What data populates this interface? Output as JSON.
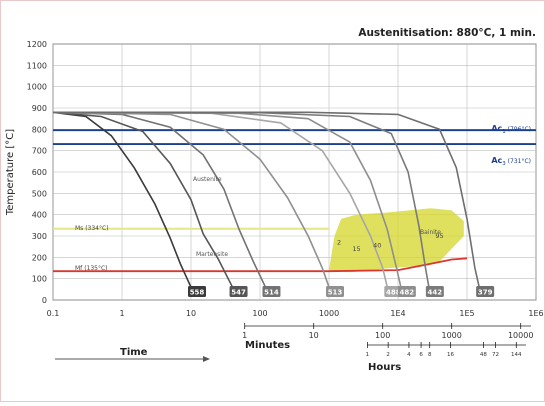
{
  "chart_data": {
    "type": "line",
    "title": "Austenitisation: 880°C, 1 min.",
    "ylabel": "Temperature [°C]",
    "xlabel": "Time",
    "x_scale": "log",
    "xlim": [
      0.1,
      1000000
    ],
    "ylim": [
      0,
      1200
    ],
    "grid": true,
    "yticks": [
      "0",
      "100",
      "200",
      "300",
      "400",
      "500",
      "600",
      "700",
      "800",
      "900",
      "1000",
      "1100",
      "1200"
    ],
    "xticks": [
      {
        "v": 0.1,
        "label": "0.1"
      },
      {
        "v": 1,
        "label": "1"
      },
      {
        "v": 10,
        "label": "10"
      },
      {
        "v": 100,
        "label": "100"
      },
      {
        "v": 1000,
        "label": "1000"
      },
      {
        "v": 10000,
        "label": "1E4"
      },
      {
        "v": 100000,
        "label": "1E5"
      },
      {
        "v": 1000000,
        "label": "1E6"
      }
    ],
    "minutes_axis": {
      "label": "Minutes",
      "ticks": [
        {
          "v": 60,
          "label": "1"
        },
        {
          "v": 600,
          "label": "10"
        },
        {
          "v": 6000,
          "label": "100"
        },
        {
          "v": 60000,
          "label": "1000"
        },
        {
          "v": 600000,
          "label": "10000"
        }
      ]
    },
    "hours_axis": {
      "label": "Hours",
      "ticks": [
        {
          "v": 3600,
          "label": "1"
        },
        {
          "v": 7200,
          "label": "2"
        },
        {
          "v": 14400,
          "label": "4"
        },
        {
          "v": 21600,
          "label": "6"
        },
        {
          "v": 28800,
          "label": "8"
        },
        {
          "v": 57600,
          "label": "16"
        },
        {
          "v": 172800,
          "label": "48"
        },
        {
          "v": 259200,
          "label": "72"
        },
        {
          "v": 518400,
          "label": "144"
        }
      ]
    },
    "reference_lines": [
      {
        "key": "ac1",
        "y": 796,
        "label_main": "Ac",
        "label_sub": "1",
        "label_rest": " (796°C)",
        "color": "#1b3f8f"
      },
      {
        "key": "ac3",
        "y": 731,
        "label_main": "Ac",
        "label_sub": "3",
        "label_rest": " (731°C)",
        "color": "#1b3f8f"
      },
      {
        "key": "ms",
        "y": 334,
        "label": "Ms (334°C)",
        "color": "#e4e68a"
      },
      {
        "key": "mf",
        "y": 135,
        "label": "Mf (135°C)",
        "color": "#d8362f"
      }
    ],
    "regions": [
      {
        "name": "Austenite"
      },
      {
        "name": "Martensite"
      },
      {
        "name": "Bainite"
      }
    ],
    "bainite_percent_labels": [
      {
        "label": "2",
        "x": 1400,
        "y": 260
      },
      {
        "label": "15",
        "x": 2500,
        "y": 230
      },
      {
        "label": "40",
        "x": 5000,
        "y": 245
      },
      {
        "label": "95",
        "x": 40000,
        "y": 290
      }
    ],
    "bainite_region": [
      [
        1000,
        140
      ],
      [
        1200,
        300
      ],
      [
        1500,
        380
      ],
      [
        2500,
        400
      ],
      [
        7000,
        410
      ],
      [
        30000,
        430
      ],
      [
        60000,
        420
      ],
      [
        90000,
        370
      ],
      [
        90000,
        300
      ],
      [
        40000,
        180
      ],
      [
        20000,
        160
      ],
      [
        8000,
        150
      ],
      [
        4000,
        140
      ],
      [
        2000,
        130
      ]
    ],
    "bainite_finish": [
      [
        1000,
        135
      ],
      [
        10000,
        140
      ],
      [
        30000,
        170
      ],
      [
        60000,
        190
      ],
      [
        100000,
        195
      ]
    ],
    "series": [
      {
        "hardness": "558",
        "color": "#3a3a3a",
        "points": [
          [
            0.1,
            880
          ],
          [
            0.3,
            860
          ],
          [
            0.7,
            770
          ],
          [
            1.5,
            620
          ],
          [
            3,
            450
          ],
          [
            5,
            290
          ],
          [
            7,
            170
          ],
          [
            10,
            60
          ]
        ]
      },
      {
        "hardness": "547",
        "color": "#555555",
        "points": [
          [
            0.1,
            880
          ],
          [
            0.5,
            860
          ],
          [
            2,
            790
          ],
          [
            5,
            640
          ],
          [
            10,
            470
          ],
          [
            15,
            310
          ],
          [
            25,
            190
          ],
          [
            40,
            60
          ]
        ]
      },
      {
        "hardness": "514",
        "color": "#727272",
        "points": [
          [
            0.1,
            880
          ],
          [
            1,
            870
          ],
          [
            5,
            810
          ],
          [
            15,
            680
          ],
          [
            30,
            520
          ],
          [
            50,
            330
          ],
          [
            80,
            180
          ],
          [
            120,
            60
          ]
        ]
      },
      {
        "hardness": "513",
        "color": "#909090",
        "points": [
          [
            0.1,
            880
          ],
          [
            5,
            870
          ],
          [
            30,
            800
          ],
          [
            100,
            660
          ],
          [
            250,
            480
          ],
          [
            500,
            300
          ],
          [
            800,
            150
          ],
          [
            1000,
            60
          ]
        ]
      },
      {
        "hardness": "488",
        "color": "#a6a6a6",
        "points": [
          [
            0.1,
            880
          ],
          [
            20,
            875
          ],
          [
            200,
            830
          ],
          [
            800,
            700
          ],
          [
            2000,
            500
          ],
          [
            4000,
            300
          ],
          [
            6000,
            150
          ],
          [
            7000,
            60
          ]
        ]
      },
      {
        "hardness": "482",
        "color": "#8e8e8e",
        "points": [
          [
            0.1,
            880
          ],
          [
            50,
            875
          ],
          [
            500,
            850
          ],
          [
            2000,
            740
          ],
          [
            4000,
            560
          ],
          [
            7000,
            330
          ],
          [
            9500,
            150
          ],
          [
            11000,
            60
          ]
        ]
      },
      {
        "hardness": "442",
        "color": "#7a7a7a",
        "points": [
          [
            0.1,
            880
          ],
          [
            100,
            878
          ],
          [
            2000,
            860
          ],
          [
            8000,
            780
          ],
          [
            14000,
            600
          ],
          [
            20000,
            350
          ],
          [
            25000,
            150
          ],
          [
            28000,
            60
          ]
        ]
      },
      {
        "hardness": "379",
        "color": "#6e6e6e",
        "points": [
          [
            0.1,
            880
          ],
          [
            500,
            880
          ],
          [
            10000,
            870
          ],
          [
            40000,
            800
          ],
          [
            70000,
            620
          ],
          [
            100000,
            380
          ],
          [
            130000,
            150
          ],
          [
            150000,
            60
          ]
        ]
      }
    ]
  }
}
